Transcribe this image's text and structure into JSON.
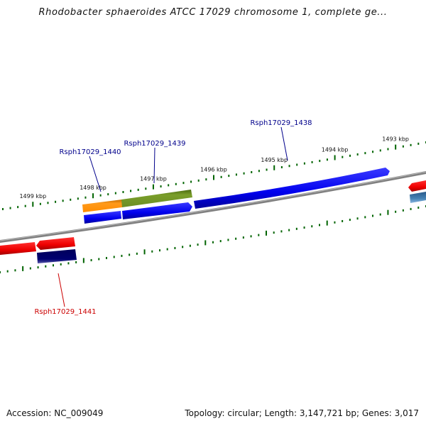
{
  "title": "Rhodobacter sphaeroides ATCC 17029 chromosome 1, complete ge...",
  "footer": {
    "accession": "Accession: NC_009049",
    "summary": "Topology: circular; Length: 3,147,721 bp; Genes: 3,017"
  },
  "ticks": {
    "upper": [
      "1499 kbp",
      "1498 kbp",
      "1497 kbp",
      "1496 kbp",
      "1495 kbp",
      "1494 kbp",
      "1493 kbp"
    ]
  },
  "genes": [
    {
      "label": "Rsph17029_1438",
      "color": "#00008b"
    },
    {
      "label": "Rsph17029_1439",
      "color": "#00008b"
    },
    {
      "label": "Rsph17029_1440",
      "color": "#00008b"
    },
    {
      "label": "Rsph17029_1441",
      "color": "#cc0000"
    }
  ],
  "colors": {
    "backbone": "#808080",
    "tick": "#006400",
    "forward_gene": "#0000ee",
    "reverse_gene": "#ee0000",
    "orange_gene": "#ff8c00",
    "olive_gene": "#6b8e23",
    "navy_gene": "#000070",
    "steel_gene": "#4682b4"
  }
}
